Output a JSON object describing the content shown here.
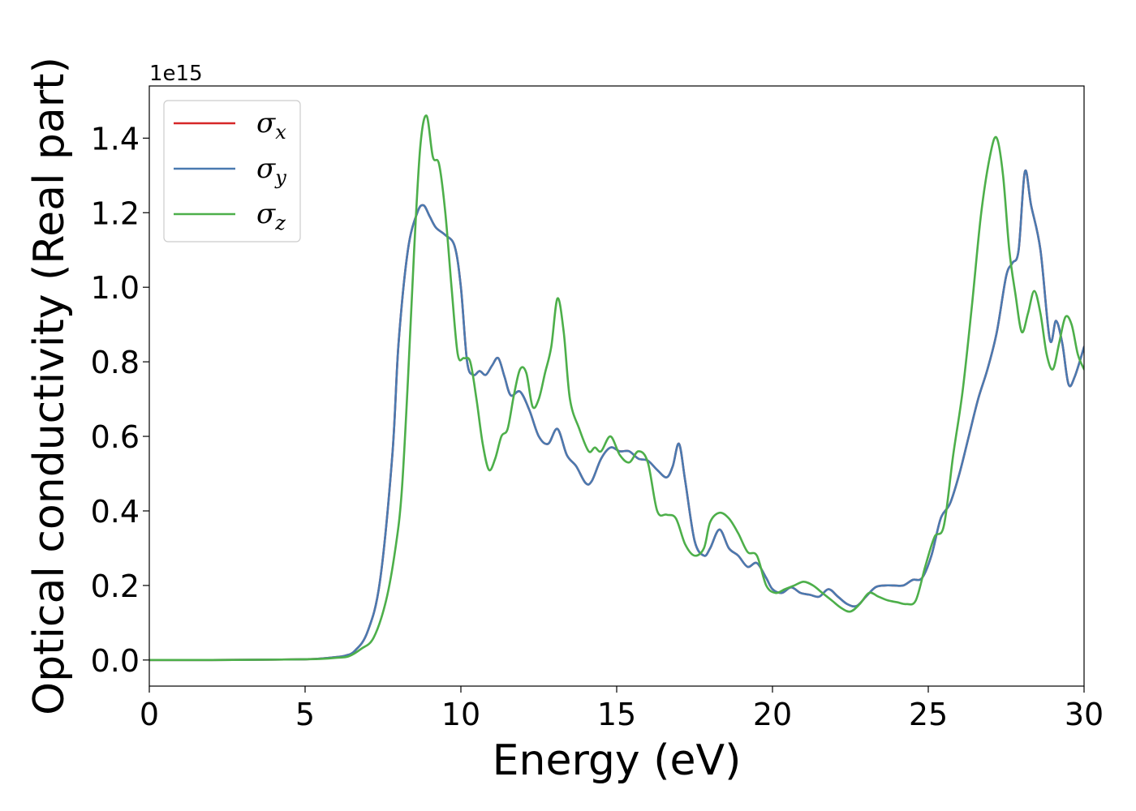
{
  "chart_data": {
    "type": "line",
    "xlabel": "Energy (eV)",
    "ylabel": "Optical conductivity (Real part)",
    "y_offset_label": "1e15",
    "xlim": [
      0,
      30
    ],
    "ylim": [
      -0.07,
      1.54
    ],
    "x_ticks": [
      0,
      5,
      10,
      15,
      20,
      25,
      30
    ],
    "y_ticks": [
      0.0,
      0.2,
      0.4,
      0.6,
      0.8,
      1.0,
      1.2,
      1.4
    ],
    "x_tick_labels": [
      "0",
      "5",
      "10",
      "15",
      "20",
      "25",
      "30"
    ],
    "y_tick_labels": [
      "0.0",
      "0.2",
      "0.4",
      "0.6",
      "0.8",
      "1.0",
      "1.2",
      "1.4"
    ],
    "legend_position": "top-left",
    "grid": false,
    "series": [
      {
        "name": "σx",
        "legend_symbol": "σ",
        "legend_sub": "x",
        "color": "#d62728",
        "x": [
          0,
          2,
          4,
          5,
          5.5,
          6,
          6.3,
          6.6,
          7.0,
          7.4,
          7.8,
          8.0,
          8.3,
          8.6,
          8.8,
          9.0,
          9.2,
          9.5,
          9.8,
          10.0,
          10.2,
          10.4,
          10.6,
          10.8,
          11.0,
          11.2,
          11.4,
          11.6,
          11.9,
          12.2,
          12.5,
          12.8,
          13.1,
          13.4,
          13.7,
          14.0,
          14.2,
          14.5,
          14.8,
          15.1,
          15.4,
          15.7,
          16.0,
          16.3,
          16.6,
          16.8,
          17.0,
          17.2,
          17.5,
          17.8,
          18.0,
          18.3,
          18.6,
          18.9,
          19.2,
          19.5,
          19.8,
          20.0,
          20.3,
          20.6,
          20.9,
          21.2,
          21.5,
          21.8,
          22.1,
          22.4,
          22.7,
          23.0,
          23.3,
          23.6,
          23.9,
          24.2,
          24.5,
          24.8,
          25.1,
          25.4,
          25.7,
          26.0,
          26.3,
          26.6,
          26.9,
          27.2,
          27.5,
          27.7,
          27.9,
          28.1,
          28.3,
          28.6,
          28.9,
          29.1,
          29.3,
          29.5,
          29.7,
          30.0
        ],
        "values": [
          0.0,
          0.0,
          0.001,
          0.002,
          0.004,
          0.008,
          0.012,
          0.025,
          0.075,
          0.21,
          0.55,
          0.85,
          1.1,
          1.2,
          1.22,
          1.19,
          1.16,
          1.14,
          1.11,
          1.0,
          0.8,
          0.765,
          0.775,
          0.765,
          0.79,
          0.81,
          0.76,
          0.71,
          0.72,
          0.67,
          0.6,
          0.58,
          0.62,
          0.55,
          0.52,
          0.475,
          0.48,
          0.54,
          0.57,
          0.56,
          0.56,
          0.54,
          0.535,
          0.51,
          0.49,
          0.52,
          0.58,
          0.48,
          0.32,
          0.28,
          0.3,
          0.35,
          0.3,
          0.28,
          0.25,
          0.26,
          0.22,
          0.19,
          0.18,
          0.195,
          0.18,
          0.175,
          0.17,
          0.19,
          0.17,
          0.15,
          0.145,
          0.17,
          0.195,
          0.2,
          0.2,
          0.2,
          0.215,
          0.22,
          0.28,
          0.38,
          0.42,
          0.5,
          0.6,
          0.7,
          0.78,
          0.88,
          1.03,
          1.065,
          1.1,
          1.31,
          1.22,
          1.1,
          0.86,
          0.91,
          0.85,
          0.74,
          0.76,
          0.84
        ]
      },
      {
        "name": "σy",
        "legend_symbol": "σ",
        "legend_sub": "y",
        "color": "#4a7ab0",
        "x": [
          0,
          2,
          4,
          5,
          5.5,
          6,
          6.3,
          6.6,
          7.0,
          7.4,
          7.8,
          8.0,
          8.3,
          8.6,
          8.8,
          9.0,
          9.2,
          9.5,
          9.8,
          10.0,
          10.2,
          10.4,
          10.6,
          10.8,
          11.0,
          11.2,
          11.4,
          11.6,
          11.9,
          12.2,
          12.5,
          12.8,
          13.1,
          13.4,
          13.7,
          14.0,
          14.2,
          14.5,
          14.8,
          15.1,
          15.4,
          15.7,
          16.0,
          16.3,
          16.6,
          16.8,
          17.0,
          17.2,
          17.5,
          17.8,
          18.0,
          18.3,
          18.6,
          18.9,
          19.2,
          19.5,
          19.8,
          20.0,
          20.3,
          20.6,
          20.9,
          21.2,
          21.5,
          21.8,
          22.1,
          22.4,
          22.7,
          23.0,
          23.3,
          23.6,
          23.9,
          24.2,
          24.5,
          24.8,
          25.1,
          25.4,
          25.7,
          26.0,
          26.3,
          26.6,
          26.9,
          27.2,
          27.5,
          27.7,
          27.9,
          28.1,
          28.3,
          28.6,
          28.9,
          29.1,
          29.3,
          29.5,
          29.7,
          30.0
        ],
        "values": [
          0.0,
          0.0,
          0.001,
          0.002,
          0.004,
          0.008,
          0.012,
          0.025,
          0.075,
          0.21,
          0.55,
          0.85,
          1.1,
          1.2,
          1.22,
          1.19,
          1.16,
          1.14,
          1.11,
          1.0,
          0.8,
          0.765,
          0.775,
          0.765,
          0.79,
          0.81,
          0.76,
          0.71,
          0.72,
          0.67,
          0.6,
          0.58,
          0.62,
          0.55,
          0.52,
          0.475,
          0.48,
          0.54,
          0.57,
          0.56,
          0.56,
          0.54,
          0.535,
          0.51,
          0.49,
          0.52,
          0.58,
          0.48,
          0.32,
          0.28,
          0.3,
          0.35,
          0.3,
          0.28,
          0.25,
          0.26,
          0.22,
          0.19,
          0.18,
          0.195,
          0.18,
          0.175,
          0.17,
          0.19,
          0.17,
          0.15,
          0.145,
          0.17,
          0.195,
          0.2,
          0.2,
          0.2,
          0.215,
          0.22,
          0.28,
          0.38,
          0.42,
          0.5,
          0.6,
          0.7,
          0.78,
          0.88,
          1.03,
          1.065,
          1.1,
          1.31,
          1.22,
          1.1,
          0.86,
          0.91,
          0.85,
          0.74,
          0.76,
          0.84
        ]
      },
      {
        "name": "σz",
        "legend_symbol": "σ",
        "legend_sub": "z",
        "color": "#4daf4a",
        "x": [
          0,
          2,
          4,
          5,
          5.5,
          6,
          6.4,
          6.8,
          7.2,
          7.6,
          7.9,
          8.1,
          8.3,
          8.5,
          8.7,
          8.9,
          9.1,
          9.3,
          9.5,
          9.7,
          9.9,
          10.1,
          10.3,
          10.5,
          10.7,
          10.9,
          11.1,
          11.3,
          11.5,
          11.7,
          11.9,
          12.1,
          12.3,
          12.5,
          12.7,
          12.9,
          13.1,
          13.3,
          13.5,
          13.8,
          14.1,
          14.3,
          14.5,
          14.8,
          15.1,
          15.4,
          15.7,
          16.0,
          16.3,
          16.6,
          16.9,
          17.2,
          17.5,
          17.8,
          18.0,
          18.3,
          18.6,
          18.9,
          19.2,
          19.5,
          19.8,
          20.1,
          20.4,
          20.7,
          21.0,
          21.3,
          21.6,
          21.9,
          22.2,
          22.5,
          22.8,
          23.1,
          23.4,
          23.7,
          24.0,
          24.3,
          24.6,
          24.9,
          25.2,
          25.5,
          25.8,
          26.1,
          26.4,
          26.7,
          27.0,
          27.2,
          27.4,
          27.6,
          27.8,
          28.0,
          28.2,
          28.4,
          28.6,
          28.8,
          29.0,
          29.2,
          29.4,
          29.6,
          29.8,
          30.0
        ],
        "values": [
          0.0,
          0.0,
          0.001,
          0.002,
          0.003,
          0.006,
          0.01,
          0.03,
          0.06,
          0.16,
          0.3,
          0.45,
          0.75,
          1.1,
          1.38,
          1.46,
          1.35,
          1.33,
          1.2,
          1.0,
          0.82,
          0.81,
          0.8,
          0.7,
          0.58,
          0.51,
          0.54,
          0.6,
          0.62,
          0.71,
          0.78,
          0.77,
          0.68,
          0.7,
          0.77,
          0.84,
          0.97,
          0.88,
          0.7,
          0.62,
          0.56,
          0.57,
          0.56,
          0.6,
          0.55,
          0.53,
          0.56,
          0.53,
          0.4,
          0.39,
          0.38,
          0.31,
          0.28,
          0.3,
          0.37,
          0.395,
          0.38,
          0.34,
          0.29,
          0.28,
          0.2,
          0.18,
          0.19,
          0.2,
          0.21,
          0.2,
          0.18,
          0.16,
          0.14,
          0.13,
          0.15,
          0.18,
          0.17,
          0.16,
          0.155,
          0.15,
          0.16,
          0.25,
          0.33,
          0.36,
          0.55,
          0.72,
          0.95,
          1.2,
          1.36,
          1.4,
          1.3,
          1.1,
          0.98,
          0.88,
          0.93,
          0.99,
          0.93,
          0.82,
          0.78,
          0.85,
          0.92,
          0.9,
          0.82,
          0.78
        ]
      }
    ]
  }
}
